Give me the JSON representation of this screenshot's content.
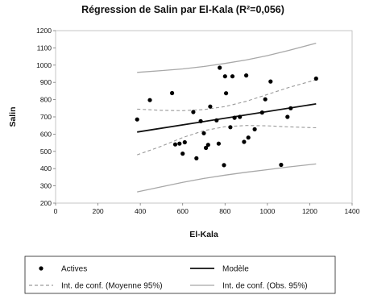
{
  "chart_data": {
    "type": "scatter",
    "title": "Régression de Salin par El-Kala (R²=0,056)",
    "xlabel": "El-Kala",
    "ylabel": "Salin",
    "xlim": [
      0,
      1400
    ],
    "ylim": [
      200,
      1200
    ],
    "xticks": [
      "0",
      "200",
      "400",
      "600",
      "800",
      "1000",
      "1200",
      "1400"
    ],
    "yticks": [
      "200",
      "300",
      "400",
      "500",
      "600",
      "700",
      "800",
      "900",
      "1000",
      "1100",
      "1200"
    ],
    "grid": false,
    "legend_position": "bottom",
    "series": [
      {
        "name": "Actives",
        "kind": "points",
        "color": "#000000",
        "points": [
          [
            385,
            685
          ],
          [
            445,
            797
          ],
          [
            550,
            838
          ],
          [
            565,
            540
          ],
          [
            585,
            545
          ],
          [
            600,
            487
          ],
          [
            610,
            553
          ],
          [
            650,
            728
          ],
          [
            665,
            460
          ],
          [
            685,
            675
          ],
          [
            700,
            605
          ],
          [
            710,
            520
          ],
          [
            720,
            538
          ],
          [
            730,
            760
          ],
          [
            760,
            680
          ],
          [
            770,
            545
          ],
          [
            775,
            985
          ],
          [
            795,
            420
          ],
          [
            800,
            935
          ],
          [
            805,
            837
          ],
          [
            825,
            640
          ],
          [
            835,
            935
          ],
          [
            845,
            695
          ],
          [
            870,
            700
          ],
          [
            890,
            555
          ],
          [
            900,
            940
          ],
          [
            910,
            580
          ],
          [
            940,
            628
          ],
          [
            975,
            725
          ],
          [
            990,
            802
          ],
          [
            1015,
            905
          ],
          [
            1065,
            422
          ],
          [
            1095,
            700
          ],
          [
            1110,
            750
          ],
          [
            1230,
            922
          ]
        ]
      },
      {
        "name": "Modèle",
        "kind": "line",
        "color": "#111111",
        "x": [
          385,
          1230
        ],
        "y": [
          612,
          775
        ]
      },
      {
        "name": "Int. de conf. (Moyenne 95%)",
        "kind": "band",
        "color": "#9a9a9a",
        "x": [
          385,
          500,
          600,
          700,
          800,
          900,
          1000,
          1100,
          1230
        ],
        "upper": [
          745,
          738,
          736,
          742,
          760,
          790,
          830,
          870,
          915
        ],
        "lower": [
          480,
          530,
          580,
          620,
          643,
          650,
          648,
          642,
          637
        ]
      },
      {
        "name": "Int. de conf. (Obs. 95%)",
        "kind": "band",
        "color": "#a8a8a8",
        "x": [
          385,
          500,
          600,
          700,
          800,
          900,
          1000,
          1100,
          1230
        ],
        "upper": [
          958,
          968,
          978,
          992,
          1010,
          1030,
          1055,
          1085,
          1127
        ],
        "lower": [
          265,
          295,
          320,
          343,
          362,
          379,
          394,
          410,
          427
        ]
      }
    ]
  }
}
